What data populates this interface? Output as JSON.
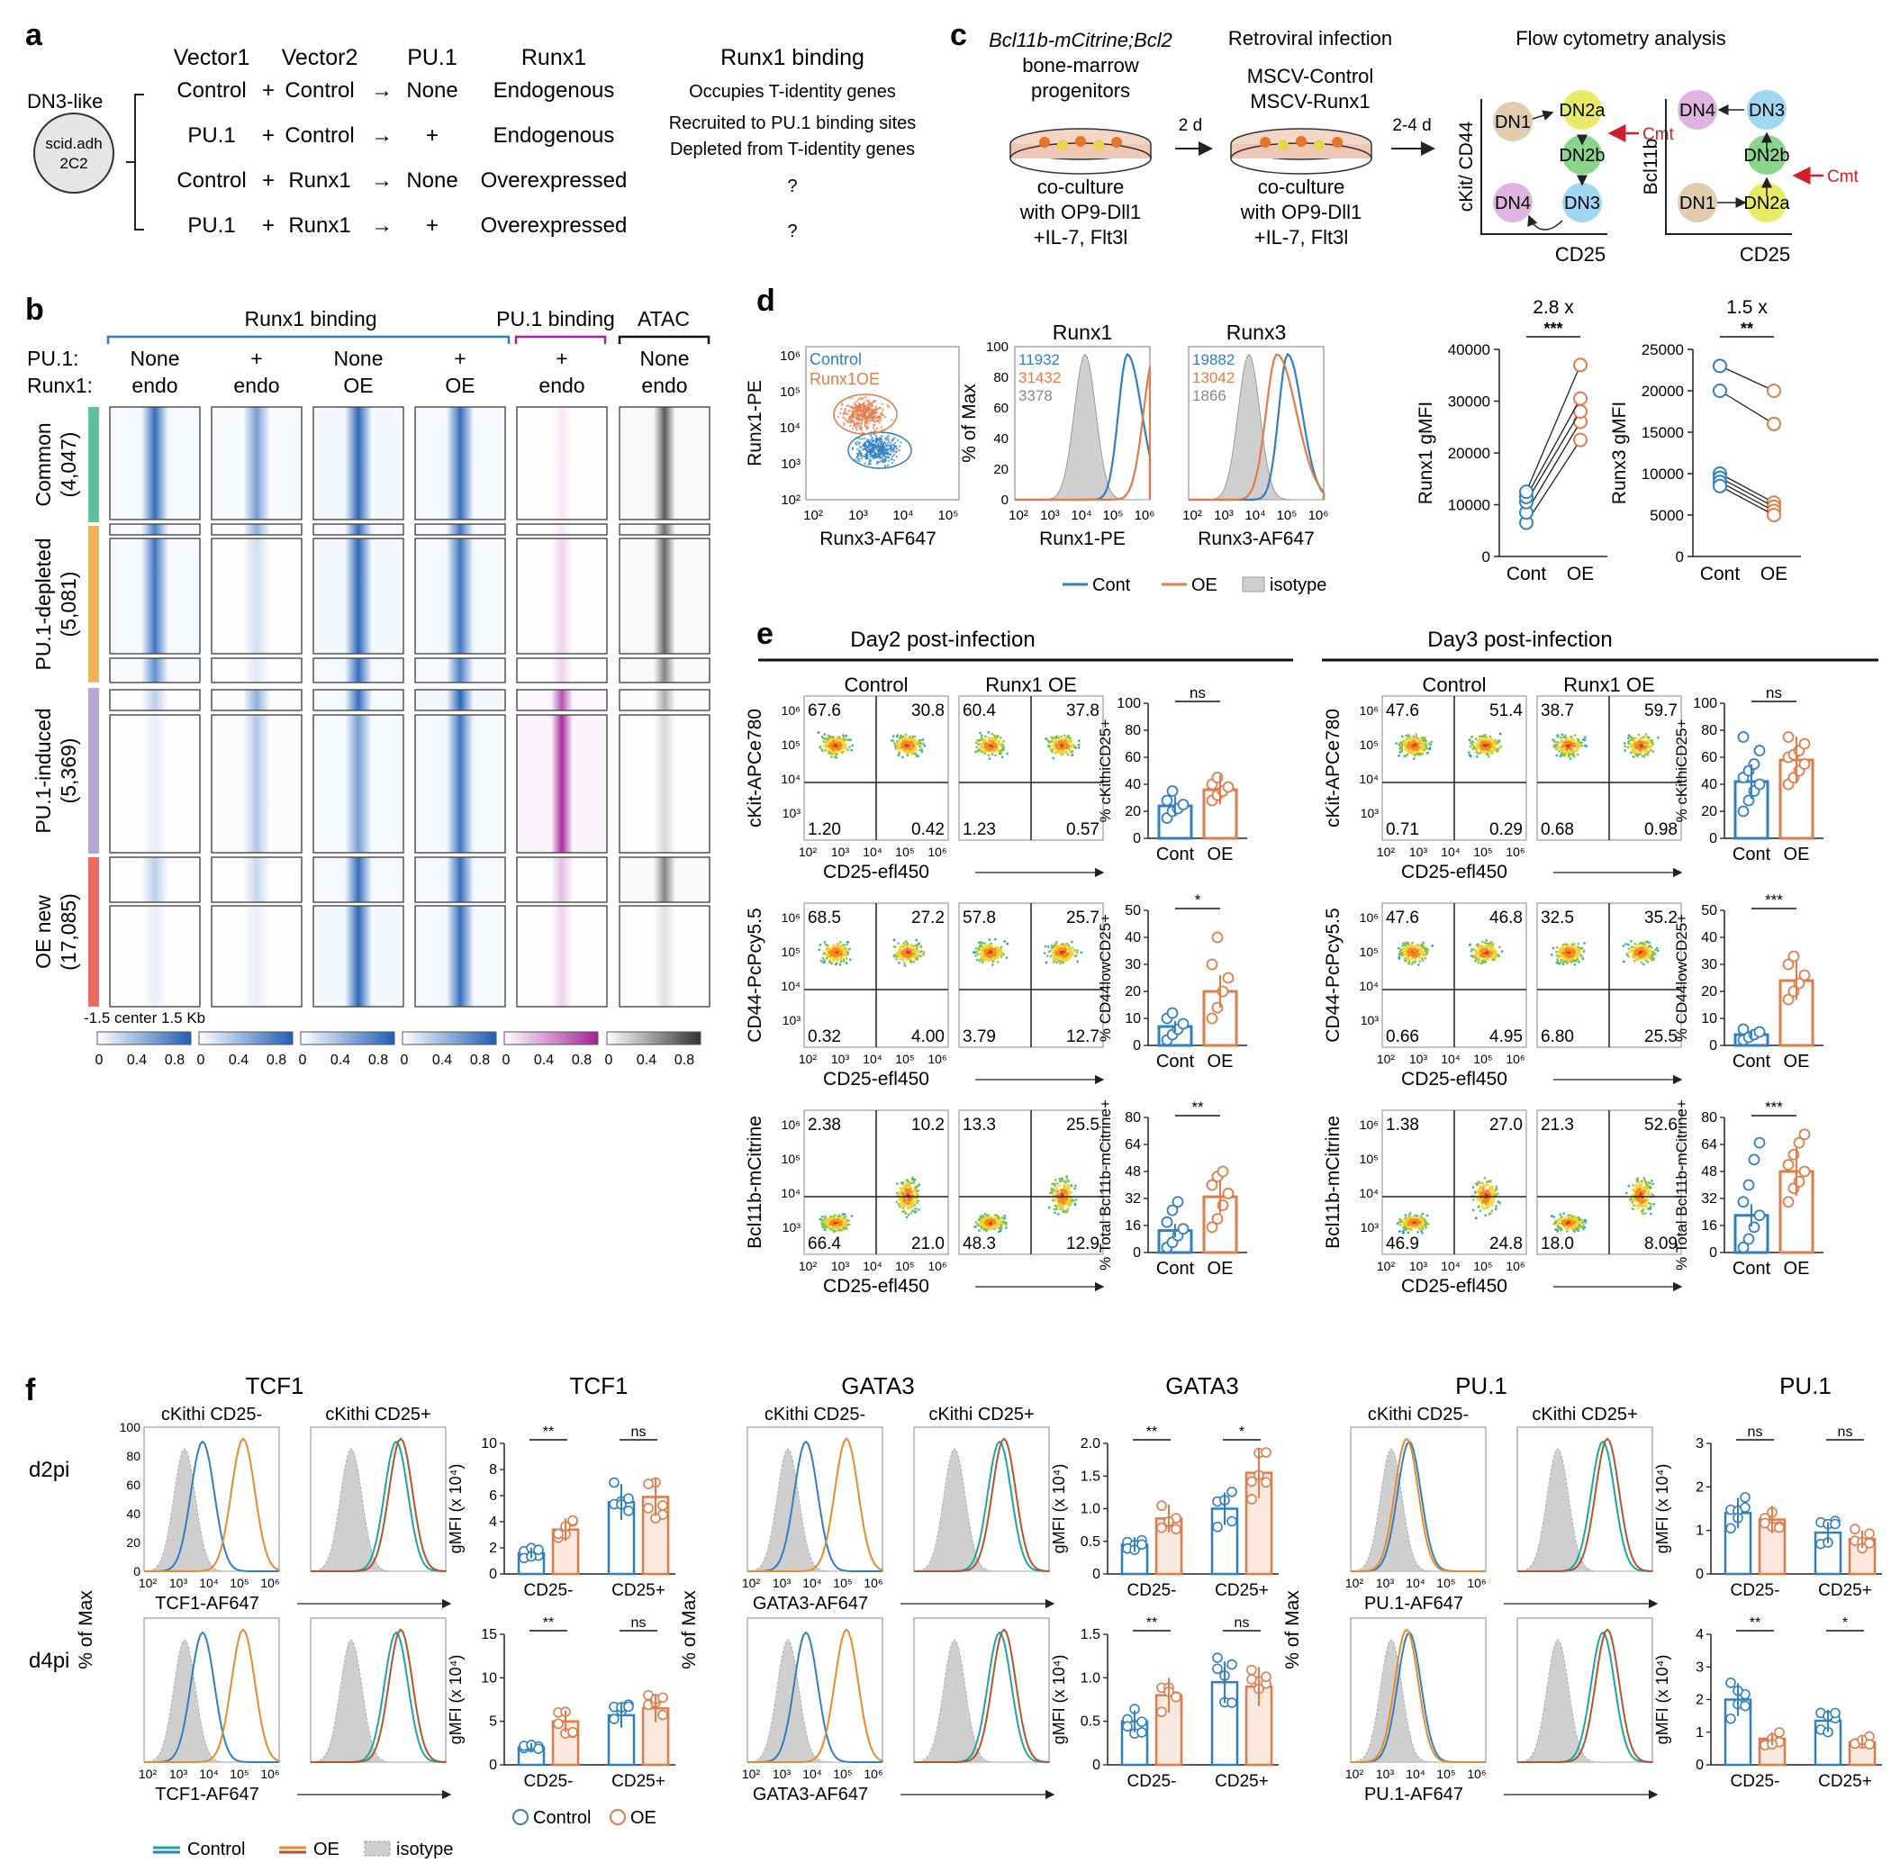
{
  "colors": {
    "control": "#2f7fc1",
    "oe": "#e07b4a",
    "isotype": "#cfcfcf",
    "runx_blue": "#1f5fb4",
    "pu1_magenta": "#a3229a",
    "atac_gray": "#444444",
    "common": "#5fbf9f",
    "depleted": "#f0b25a",
    "induced": "#b8a7d6",
    "oenew": "#ef6a63",
    "red_arrow": "#d0202a",
    "dn1": "#dcc3a2",
    "dn2a": "#e4e84a",
    "dn2b": "#77cc77",
    "dn3": "#8fd0f0",
    "dn4": "#d9a7dc"
  },
  "panel_a": {
    "letter": "a",
    "cell_line": "DN3-like",
    "cell_name": [
      "scid.adh",
      "2C2"
    ],
    "headers": [
      "Vector1",
      "Vector2",
      "PU.1",
      "Runx1",
      "Runx1 binding"
    ],
    "rows": [
      {
        "v1": "Control",
        "v2": "Control",
        "pu1": "None",
        "runx1": "Endogenous",
        "binding": [
          "Occupies T-identity genes"
        ]
      },
      {
        "v1": "PU.1",
        "v2": "Control",
        "pu1": "+",
        "runx1": "Endogenous",
        "binding": [
          "Recruited to PU.1 binding sites",
          "Depleted from T-identity genes"
        ]
      },
      {
        "v1": "Control",
        "v2": "Runx1",
        "pu1": "None",
        "runx1": "Overexpressed",
        "binding": [
          "?"
        ]
      },
      {
        "v1": "PU.1",
        "v2": "Runx1",
        "pu1": "+",
        "runx1": "Overexpressed",
        "binding": [
          "?"
        ]
      }
    ],
    "plus": "+",
    "arrow": "→"
  },
  "panel_b": {
    "letter": "b",
    "group_titles": [
      "Runx1 binding",
      "PU.1 binding",
      "ATAC"
    ],
    "row_labels": [
      "PU.1:",
      "Runx1:"
    ],
    "columns": [
      {
        "pu1": "None",
        "runx1": "endo"
      },
      {
        "pu1": "+",
        "runx1": "endo"
      },
      {
        "pu1": "None",
        "runx1": "OE"
      },
      {
        "pu1": "+",
        "runx1": "OE"
      },
      {
        "pu1": "+",
        "runx1": "endo"
      },
      {
        "pu1": "None",
        "runx1": "endo"
      }
    ],
    "clusters": [
      {
        "name": "Common",
        "count": "(4,047)"
      },
      {
        "name": "PU.1-depleted",
        "count": "(5,081)"
      },
      {
        "name": "PU.1-induced",
        "count": "(5,369)"
      },
      {
        "name": "OE new",
        "count": "(17,085)"
      }
    ],
    "axis_label": "-1.5    center  1.5 Kb",
    "scale_ticks": [
      "0",
      "0.4",
      "0.8"
    ]
  },
  "panel_c": {
    "letter": "c",
    "step1": [
      "Bcl11b-mCitrine;Bcl2",
      "bone-marrow",
      "progenitors"
    ],
    "step1_culture": [
      "co-culture",
      "with OP9-Dll1",
      "+IL-7, Flt3l"
    ],
    "arrow1": "2 d",
    "step2_title": "Retroviral infection",
    "step2": [
      "MSCV-Control",
      "MSCV-Runx1"
    ],
    "step2_culture": [
      "co-culture",
      "with OP9-Dll1",
      "+IL-7, Flt3l"
    ],
    "arrow2": "2-4 d",
    "step3_title": "Flow cytometry analysis",
    "plot1": {
      "ylabel": "cKit/ CD44",
      "xlabel": "CD25"
    },
    "plot2": {
      "ylabel": "Bcl11b",
      "xlabel": "CD25"
    },
    "nodes": [
      "DN1",
      "DN2a",
      "DN2b",
      "DN3",
      "DN4"
    ],
    "cmt": "Cmt"
  },
  "panel_d": {
    "letter": "d",
    "scatter": {
      "ylabel": "Runx1-PE",
      "xlabel": "Runx3-AF647",
      "legend": [
        "Control",
        "Runx1OE"
      ],
      "ticks": [
        "10²",
        "10³",
        "10⁴",
        "10⁵"
      ],
      "yticks": [
        "10²",
        "10³",
        "10⁴",
        "10⁵",
        "10⁶"
      ]
    },
    "hist_runx1": {
      "title": "Runx1",
      "xlabel": "Runx1-PE",
      "values": [
        "11932",
        "31432",
        "3378"
      ]
    },
    "hist_runx3": {
      "title": "Runx3",
      "xlabel": "Runx3-AF647",
      "values": [
        "19882",
        "13042",
        "1866"
      ]
    },
    "hist_ylabel": "% of Max",
    "hist_yticks": [
      "0",
      "20",
      "40",
      "60",
      "80",
      "100"
    ],
    "hist_xticks": [
      "10²",
      "10³",
      "10⁴",
      "10⁵",
      "10⁶"
    ],
    "legend": [
      "Cont",
      "OE",
      "isotype"
    ],
    "chart_data": [
      {
        "type": "scatter",
        "title": "2.8 x",
        "ylabel": "Runx1 gMFI",
        "categories": [
          "Cont",
          "OE"
        ],
        "ylim": [
          0,
          40000
        ],
        "yticks": [
          "0",
          "10000",
          "20000",
          "30000",
          "40000"
        ],
        "pairs": [
          [
            6500,
            22500
          ],
          [
            8500,
            26000
          ],
          [
            10500,
            28000
          ],
          [
            11500,
            30500
          ],
          [
            12500,
            37000
          ]
        ],
        "significance": "***"
      },
      {
        "type": "scatter",
        "title": "1.5 x",
        "ylabel": "Runx3 gMFI",
        "categories": [
          "Cont",
          "OE"
        ],
        "ylim": [
          0,
          25000
        ],
        "yticks": [
          "0",
          "5000",
          "10000",
          "15000",
          "20000",
          "25000"
        ],
        "pairs": [
          [
            23000,
            20000
          ],
          [
            20000,
            16000
          ],
          [
            10000,
            6500
          ],
          [
            9500,
            6000
          ],
          [
            9000,
            5500
          ],
          [
            8500,
            5000
          ]
        ],
        "significance": "**"
      }
    ]
  },
  "panel_e": {
    "letter": "e",
    "days": [
      "Day2 post-infection",
      "Day3 post-infection"
    ],
    "col_titles": [
      "Control",
      "Runx1 OE"
    ],
    "row_ylabels": [
      "cKit-APCe780",
      "CD44-PcPcy5.5",
      "Bcl11b-mCitrine"
    ],
    "xlabel": "CD25-efl450",
    "quadrants": {
      "day2": [
        [
          [
            "67.6",
            "30.8",
            "1.20",
            "0.42"
          ],
          [
            "60.4",
            "37.8",
            "1.23",
            "0.57"
          ]
        ],
        [
          [
            "68.5",
            "27.2",
            "0.32",
            "4.00"
          ],
          [
            "57.8",
            "25.7",
            "3.79",
            "12.7"
          ]
        ],
        [
          [
            "2.38",
            "10.2",
            "66.4",
            "21.0"
          ],
          [
            "13.3",
            "25.5",
            "48.3",
            "12.9"
          ]
        ]
      ],
      "day3": [
        [
          [
            "47.6",
            "51.4",
            "0.71",
            "0.29"
          ],
          [
            "38.7",
            "59.7",
            "0.68",
            "0.98"
          ]
        ],
        [
          [
            "47.6",
            "46.8",
            "0.66",
            "4.95"
          ],
          [
            "32.5",
            "35.2",
            "6.80",
            "25.5"
          ]
        ],
        [
          [
            "1.38",
            "27.0",
            "46.9",
            "24.8"
          ],
          [
            "21.3",
            "52.6",
            "18.0",
            "8.09"
          ]
        ]
      ]
    },
    "chart_data": [
      {
        "type": "bar",
        "day": "Day2",
        "ylabel": "% cKithiCD25+",
        "categories": [
          "Cont",
          "OE"
        ],
        "values": [
          24,
          36
        ],
        "ylim": [
          0,
          100
        ],
        "sig": "ns",
        "cont_points": [
          15,
          20,
          22,
          25,
          28,
          35
        ],
        "oe_points": [
          28,
          32,
          35,
          38,
          40,
          45
        ]
      },
      {
        "type": "bar",
        "day": "Day2",
        "ylabel": "% CD44lowCD25+",
        "categories": [
          "Cont",
          "OE"
        ],
        "values": [
          7,
          20
        ],
        "ylim": [
          0,
          50
        ],
        "sig": "*",
        "cont_points": [
          2,
          4,
          6,
          8,
          10,
          12
        ],
        "oe_points": [
          10,
          14,
          20,
          25,
          30,
          40
        ]
      },
      {
        "type": "bar",
        "day": "Day2",
        "ylabel": "% Total Bcl11b-mCitrine+",
        "categories": [
          "Cont",
          "OE"
        ],
        "values": [
          13,
          33
        ],
        "ylim": [
          0,
          80
        ],
        "sig": "**",
        "cont_points": [
          3,
          6,
          10,
          14,
          18,
          25,
          30
        ],
        "oe_points": [
          15,
          20,
          28,
          35,
          40,
          45,
          48
        ]
      },
      {
        "type": "bar",
        "day": "Day3",
        "ylabel": "% cKithiCD25+",
        "categories": [
          "Cont",
          "OE"
        ],
        "values": [
          42,
          58
        ],
        "ylim": [
          0,
          100
        ],
        "sig": "ns",
        "cont_points": [
          20,
          28,
          35,
          40,
          45,
          50,
          55,
          65,
          75
        ],
        "oe_points": [
          40,
          45,
          50,
          55,
          60,
          62,
          65,
          70,
          75
        ]
      },
      {
        "type": "bar",
        "day": "Day3",
        "ylabel": "% CD44lowCD25+",
        "categories": [
          "Cont",
          "OE"
        ],
        "values": [
          4,
          24
        ],
        "ylim": [
          0,
          50
        ],
        "sig": "***",
        "cont_points": [
          2,
          3,
          4,
          5,
          6
        ],
        "oe_points": [
          17,
          20,
          23,
          26,
          30,
          33
        ]
      },
      {
        "type": "bar",
        "day": "Day3",
        "ylabel": "% Total Bcl11b-mCitrine+",
        "categories": [
          "Cont",
          "OE"
        ],
        "values": [
          22,
          48
        ],
        "ylim": [
          0,
          80
        ],
        "sig": "***",
        "cont_points": [
          3,
          8,
          15,
          22,
          30,
          40,
          55,
          65
        ],
        "oe_points": [
          30,
          38,
          42,
          48,
          52,
          58,
          65,
          70
        ]
      }
    ]
  },
  "panel_f": {
    "letter": "f",
    "row_labels": [
      "d2pi",
      "d4pi"
    ],
    "hist_ylabel": "% of Max",
    "groups": [
      {
        "title": "TCF1",
        "xlabel": "TCF1-AF647",
        "sub": [
          "cKithi CD25-",
          "cKithi CD25+"
        ]
      },
      {
        "title": "GATA3",
        "xlabel": "GATA3-AF647",
        "sub": [
          "cKithi CD25-",
          "cKithi CD25+"
        ]
      },
      {
        "title": "PU.1",
        "xlabel": "PU.1-AF647",
        "sub": [
          "cKithi CD25-",
          "cKithi CD25+"
        ]
      }
    ],
    "bar_ylabel": "gMFI (x 10⁴)",
    "bar_cats": [
      "CD25-",
      "CD25+"
    ],
    "legend_dots": [
      "Control",
      "OE"
    ],
    "legend_lines": [
      "Control",
      "OE",
      "isotype"
    ],
    "chart_data": [
      {
        "type": "bar",
        "protein": "TCF1",
        "time": "d2pi",
        "ylim": [
          0,
          10
        ],
        "yticks": [
          "0",
          "2",
          "4",
          "6",
          "8",
          "10"
        ],
        "control": [
          1.6,
          5.5
        ],
        "oe": [
          3.4,
          5.9
        ],
        "sig": [
          "**",
          "ns"
        ]
      },
      {
        "type": "bar",
        "protein": "TCF1",
        "time": "d4pi",
        "ylim": [
          0,
          15
        ],
        "yticks": [
          "0",
          "5",
          "10",
          "15"
        ],
        "control": [
          2.0,
          5.7
        ],
        "oe": [
          5.0,
          6.5
        ],
        "sig": [
          "**",
          "ns"
        ]
      },
      {
        "type": "bar",
        "protein": "GATA3",
        "time": "d2pi",
        "ylim": [
          0,
          2.0
        ],
        "yticks": [
          "0",
          "0.5",
          "1.0",
          "1.5",
          "2.0"
        ],
        "control": [
          0.45,
          1.0
        ],
        "oe": [
          0.85,
          1.55
        ],
        "sig": [
          "**",
          "*"
        ]
      },
      {
        "type": "bar",
        "protein": "GATA3",
        "time": "d4pi",
        "ylim": [
          0,
          1.5
        ],
        "yticks": [
          "0",
          "0.5",
          "1.0",
          "1.5"
        ],
        "control": [
          0.5,
          0.95
        ],
        "oe": [
          0.8,
          0.9
        ],
        "sig": [
          "**",
          "ns"
        ]
      },
      {
        "type": "bar",
        "protein": "PU.1",
        "time": "d2pi",
        "ylim": [
          0,
          3
        ],
        "yticks": [
          "0",
          "1",
          "2",
          "3"
        ],
        "control": [
          1.4,
          0.95
        ],
        "oe": [
          1.25,
          0.8
        ],
        "sig": [
          "ns",
          "ns"
        ]
      },
      {
        "type": "bar",
        "protein": "PU.1",
        "time": "d4pi",
        "ylim": [
          0,
          4
        ],
        "yticks": [
          "0",
          "1",
          "2",
          "3",
          "4"
        ],
        "control": [
          2.0,
          1.35
        ],
        "oe": [
          0.8,
          0.7
        ],
        "sig": [
          "**",
          "*"
        ]
      }
    ]
  }
}
